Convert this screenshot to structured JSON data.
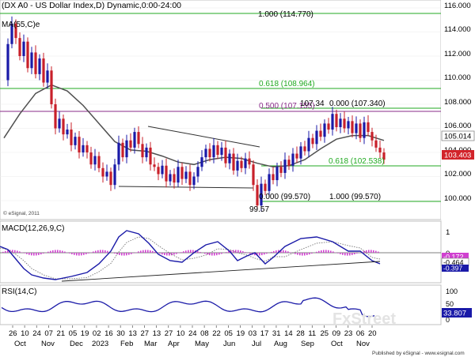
{
  "header": {
    "title": "(DX A0 - US Dollar Index,D) Dynamic,0:00-24:00",
    "ma_label": "MA(55,C)e",
    "copyright": "© eSignal, 2011"
  },
  "price_axis": {
    "ticks": [
      "116.000",
      "114.000",
      "112.000",
      "110.000",
      "108.000",
      "106.000",
      "104.000",
      "102.000",
      "100.000"
    ],
    "current_ma": "105.014",
    "current_price": "103.403"
  },
  "fib_labels": {
    "f1000_top": "1.000 (114.770)",
    "f618_top": "0.618 (108.964)",
    "f500": "0.500 (107.155)",
    "high_label": "107.34",
    "f0_right": "0.000 (107.340)",
    "f618_low": "0.618 (102.538)",
    "f0_low": "0.000 (99.570)",
    "f1000_low": "1.000 (99.570)",
    "low_label": "99.57"
  },
  "macd": {
    "label": "MACD(12,26,9,C)",
    "ticks": [
      "1",
      "0"
    ],
    "val1": "-0.172",
    "val2": "-0.464",
    "val3": "-0.397"
  },
  "rsi": {
    "label": "RSI(14,C)",
    "ticks": [
      "100",
      "50",
      "0"
    ],
    "value": "33.807"
  },
  "x_axis": {
    "days": [
      "26",
      "10",
      "24",
      "07",
      "21",
      "05",
      "19",
      "02",
      "16",
      "30",
      "13",
      "27",
      "13",
      "27",
      "10",
      "24",
      "08",
      "22",
      "05",
      "19",
      "03",
      "17",
      "31",
      "14",
      "28",
      "11",
      "25",
      "09",
      "23",
      "06",
      "20"
    ],
    "months": [
      "Oct",
      "Nov",
      "Dec",
      "2023",
      "Feb",
      "Mar",
      "Apr",
      "May",
      "Jun",
      "Jul",
      "Aug",
      "Sep",
      "Oct",
      "Nov"
    ]
  },
  "footer": {
    "published": "Published by eSignal - www.esignal.com",
    "watermark": "FxStreet"
  },
  "colors": {
    "up": "#1a1aa8",
    "down": "#c8202a",
    "ma": "#404040",
    "fib_green": "#22aa22",
    "fib_purple": "#8a2b8a",
    "macd_line": "#1a1aa8",
    "hist": "#d040d0",
    "price_tag": "#d2232a"
  },
  "chart_data": {
    "type": "candlestick",
    "title": "(DX A0 - US Dollar Index,D) Dynamic,0:00-24:00",
    "ylim": [
      99,
      116.5
    ],
    "price_levels": {
      "fib_1000_top": 114.77,
      "fib_0618_top": 108.964,
      "fib_0500": 107.155,
      "fib_0000_right": 107.34,
      "fib_0618_low": 102.538,
      "fib_0000_low": 99.57,
      "swing_high": 107.34,
      "swing_low": 99.57
    },
    "last_close": 103.403,
    "ma55_last": 105.014,
    "closes_path": [
      [
        0,
        110.0
      ],
      [
        1,
        113.0
      ],
      [
        2,
        114.7
      ],
      [
        3,
        113.5
      ],
      [
        4,
        112.0
      ],
      [
        5,
        113.2
      ],
      [
        6,
        111.0
      ],
      [
        7,
        112.3
      ],
      [
        8,
        110.5
      ],
      [
        9,
        111.8
      ],
      [
        10,
        109.8
      ],
      [
        11,
        110.8
      ],
      [
        12,
        108.0
      ],
      [
        13,
        106.0
      ],
      [
        14,
        106.8
      ],
      [
        15,
        105.5
      ],
      [
        16,
        105.9
      ],
      [
        17,
        104.6
      ],
      [
        18,
        105.3
      ],
      [
        19,
        104.0
      ],
      [
        20,
        104.6
      ],
      [
        21,
        104.0
      ],
      [
        22,
        103.0
      ],
      [
        23,
        103.7
      ],
      [
        24,
        102.7
      ],
      [
        25,
        102.0
      ],
      [
        26,
        102.4
      ],
      [
        27,
        101.3
      ],
      [
        28,
        103.0
      ],
      [
        29,
        104.8
      ],
      [
        30,
        103.6
      ],
      [
        31,
        105.0
      ],
      [
        32,
        104.4
      ],
      [
        33,
        105.7
      ],
      [
        34,
        104.7
      ],
      [
        35,
        103.6
      ],
      [
        36,
        104.4
      ],
      [
        37,
        103.0
      ],
      [
        38,
        102.8
      ],
      [
        39,
        102.2
      ],
      [
        40,
        102.9
      ],
      [
        41,
        101.6
      ],
      [
        42,
        102.2
      ],
      [
        43,
        101.5
      ],
      [
        44,
        102.8
      ],
      [
        45,
        101.8
      ],
      [
        46,
        102.4
      ],
      [
        47,
        101.3
      ],
      [
        48,
        102.0
      ],
      [
        49,
        102.8
      ],
      [
        50,
        103.6
      ],
      [
        51,
        104.3
      ],
      [
        52,
        103.6
      ],
      [
        53,
        104.6
      ],
      [
        54,
        103.8
      ],
      [
        55,
        104.4
      ],
      [
        56,
        103.1
      ],
      [
        57,
        103.9
      ],
      [
        58,
        102.5
      ],
      [
        59,
        103.3
      ],
      [
        60,
        102.7
      ],
      [
        61,
        103.5
      ],
      [
        62,
        103.0
      ],
      [
        63,
        101.3
      ],
      [
        64,
        99.6
      ],
      [
        65,
        101.4
      ],
      [
        66,
        100.8
      ],
      [
        67,
        102.2
      ],
      [
        68,
        101.7
      ],
      [
        69,
        102.8
      ],
      [
        70,
        102.3
      ],
      [
        71,
        103.4
      ],
      [
        72,
        102.9
      ],
      [
        73,
        103.9
      ],
      [
        74,
        103.5
      ],
      [
        75,
        104.5
      ],
      [
        76,
        104.1
      ],
      [
        77,
        105.2
      ],
      [
        78,
        104.7
      ],
      [
        79,
        105.8
      ],
      [
        80,
        105.3
      ],
      [
        81,
        106.4
      ],
      [
        82,
        105.9
      ],
      [
        83,
        107.2
      ],
      [
        84,
        106.1
      ],
      [
        85,
        106.8
      ],
      [
        86,
        106.0
      ],
      [
        87,
        106.6
      ],
      [
        88,
        105.6
      ],
      [
        89,
        106.4
      ],
      [
        90,
        105.2
      ],
      [
        91,
        106.5
      ],
      [
        92,
        105.7
      ],
      [
        93,
        105.0
      ],
      [
        94,
        104.4
      ],
      [
        95,
        104.0
      ],
      [
        96,
        103.4
      ]
    ],
    "ma55_path": [
      [
        0,
        105.2
      ],
      [
        4,
        107.2
      ],
      [
        8,
        108.9
      ],
      [
        12,
        109.6
      ],
      [
        16,
        109.1
      ],
      [
        20,
        107.9
      ],
      [
        24,
        106.4
      ],
      [
        28,
        104.9
      ],
      [
        32,
        104.2
      ],
      [
        36,
        104.1
      ],
      [
        40,
        103.7
      ],
      [
        44,
        103.2
      ],
      [
        48,
        103.0
      ],
      [
        52,
        103.4
      ],
      [
        56,
        103.6
      ],
      [
        60,
        103.5
      ],
      [
        64,
        103.1
      ],
      [
        68,
        102.8
      ],
      [
        72,
        102.9
      ],
      [
        76,
        103.4
      ],
      [
        80,
        104.3
      ],
      [
        84,
        105.1
      ],
      [
        88,
        105.4
      ],
      [
        92,
        105.4
      ],
      [
        96,
        105.0
      ]
    ]
  }
}
